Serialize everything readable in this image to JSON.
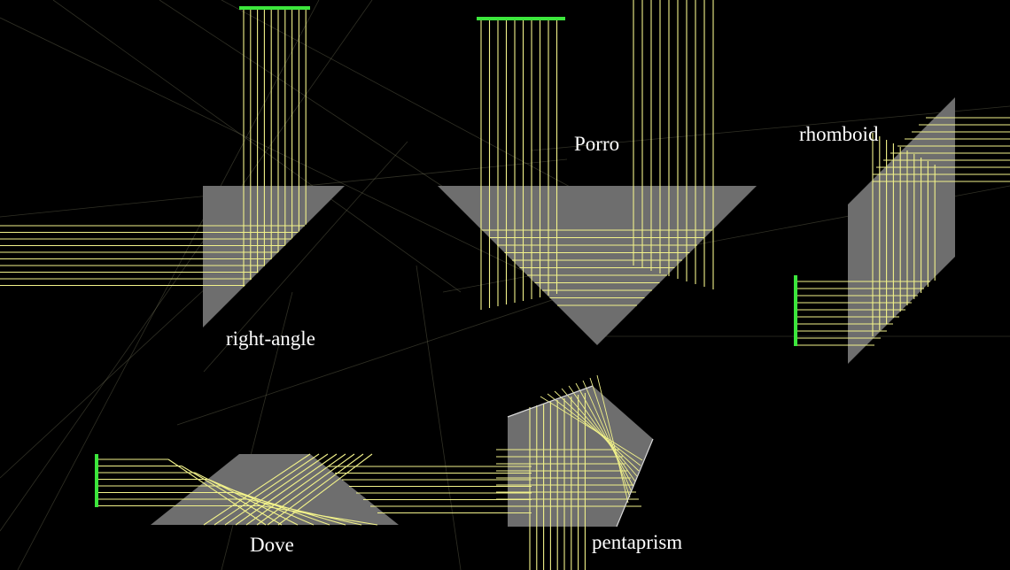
{
  "colors": {
    "background": "#000000",
    "prism_fill": "#6e6e6e",
    "ray": "#f2f28a",
    "stray_ray": "#8a8a6a",
    "screen": "#3ce63c",
    "label": "#ffffff"
  },
  "labels": {
    "right_angle": "right-angle",
    "porro": "Porro",
    "rhomboid": "rhomboid",
    "dove": "Dove",
    "pentaprism": "pentaprism"
  },
  "prisms": [
    {
      "id": "right-angle",
      "label_key": "right_angle"
    },
    {
      "id": "porro",
      "label_key": "porro"
    },
    {
      "id": "rhomboid",
      "label_key": "rhomboid"
    },
    {
      "id": "dove",
      "label_key": "dove"
    },
    {
      "id": "pentaprism",
      "label_key": "pentaprism"
    }
  ],
  "screens": [
    {
      "id": "right-angle-screen",
      "icon": "detector-screen"
    },
    {
      "id": "porro-screen",
      "icon": "detector-screen"
    },
    {
      "id": "rhomboid-screen",
      "icon": "detector-screen"
    },
    {
      "id": "dove-screen",
      "icon": "detector-screen"
    }
  ]
}
